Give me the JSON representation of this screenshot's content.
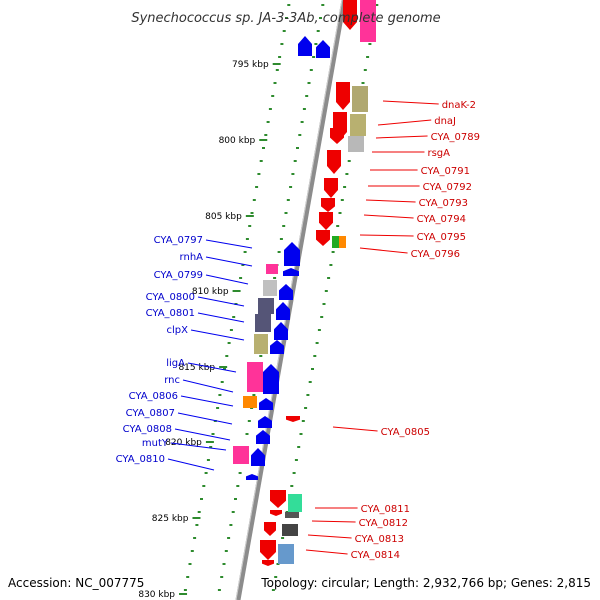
{
  "title": "Synechococcus sp. JA-3-3Ab, complete genome",
  "footer": {
    "accession": "Accession: NC_007775",
    "stats": "Topology: circular; Length: 2,932,766 bp; Genes: 2,815"
  },
  "scale": {
    "unit": "kbp",
    "ticks": [
      {
        "label": "795 kbp"
      },
      {
        "label": "800 kbp"
      },
      {
        "label": "805 kbp"
      },
      {
        "label": "810 kbp"
      },
      {
        "label": "815 kbp"
      },
      {
        "label": "820 kbp"
      },
      {
        "label": "825 kbp"
      },
      {
        "label": "830 kbp"
      }
    ]
  },
  "genes_reverse": [
    {
      "name": "dnaK-2"
    },
    {
      "name": "dnaJ"
    },
    {
      "name": "CYA_0789"
    },
    {
      "name": "rsgA"
    },
    {
      "name": "CYA_0791"
    },
    {
      "name": "CYA_0792"
    },
    {
      "name": "CYA_0793"
    },
    {
      "name": "CYA_0794"
    },
    {
      "name": "CYA_0795"
    },
    {
      "name": "CYA_0796"
    },
    {
      "name": "CYA_0805"
    },
    {
      "name": "CYA_0811"
    },
    {
      "name": "CYA_0812"
    },
    {
      "name": "CYA_0813"
    },
    {
      "name": "CYA_0814"
    }
  ],
  "genes_forward": [
    {
      "name": "CYA_0797"
    },
    {
      "name": "rnhA"
    },
    {
      "name": "CYA_0799"
    },
    {
      "name": "CYA_0800"
    },
    {
      "name": "CYA_0801"
    },
    {
      "name": "clpX"
    },
    {
      "name": "ligA"
    },
    {
      "name": "rnc"
    },
    {
      "name": "CYA_0806"
    },
    {
      "name": "CYA_0807"
    },
    {
      "name": "CYA_0808"
    },
    {
      "name": "mutY"
    },
    {
      "name": "CYA_0810"
    }
  ],
  "colors": {
    "forward_strand": "#0000ee",
    "reverse_strand": "#ee0000",
    "backbone": "#9a9a9a",
    "dots": "#2e8b2e"
  }
}
